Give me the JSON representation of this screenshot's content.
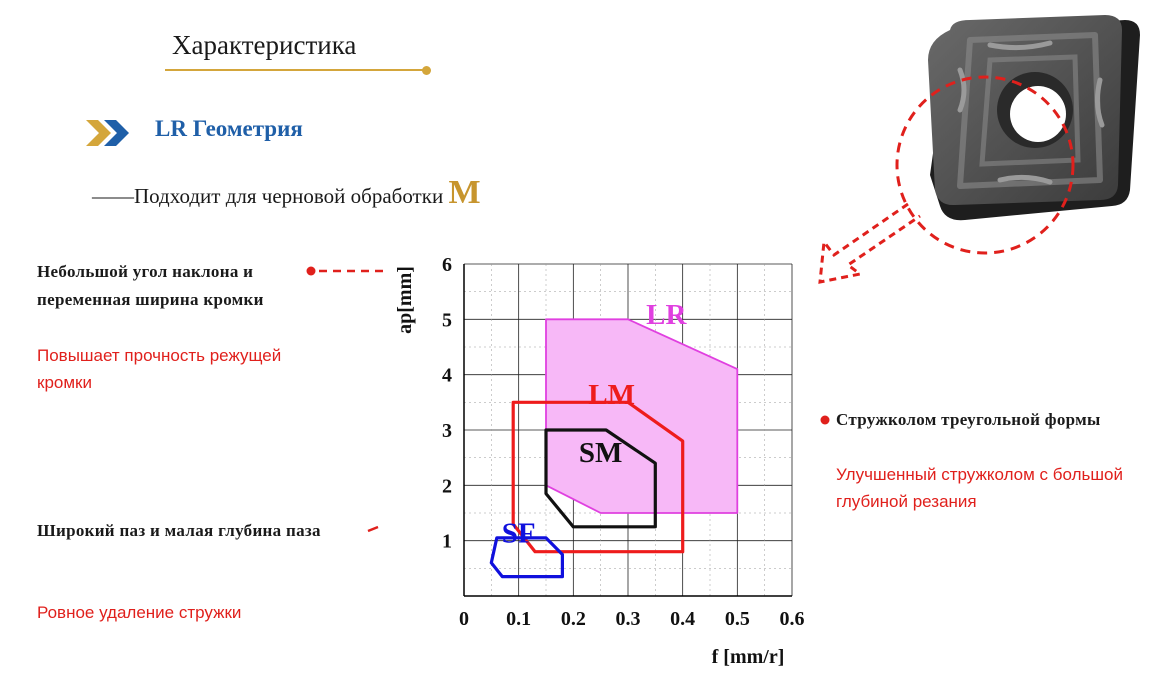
{
  "header": {
    "section_title": "Характеристика",
    "geometry_label": "LR Геометрия",
    "subtitle_text": "——Подходит для черновой обработки",
    "subtitle_highlight": "M"
  },
  "notes": [
    {
      "title": "Небольшой угол наклона и переменная ширина кромки",
      "desc": "Повышает прочность режущей кромки"
    },
    {
      "title": "Широкий паз и малая глубина паза",
      "desc": "Ровное удаление стружки"
    },
    {
      "title": "Стружколом треугольной формы",
      "desc": "Улучшенный стружколом с большой глубиной резания"
    }
  ],
  "colors": {
    "accent_gold": "#d4a63b",
    "geometry_blue": "#1f5fa8",
    "note_red": "#e0201c",
    "LR": "#e040e0",
    "LM": "#ee1c1c",
    "SM": "#111111",
    "SF": "#1010dd"
  },
  "chart_data": {
    "type": "area",
    "xlabel": "f [mm/r]",
    "ylabel": "ap[mm]",
    "xlim": [
      0,
      0.6
    ],
    "ylim": [
      0,
      6
    ],
    "xticks": [
      "0",
      "0.1",
      "0.2",
      "0.3",
      "0.4",
      "0.5",
      "0.6"
    ],
    "yticks": [
      "1",
      "2",
      "3",
      "4",
      "5",
      "6"
    ],
    "grid": true,
    "series": [
      {
        "name": "LR",
        "filled": true,
        "points": [
          [
            0.15,
            5.0
          ],
          [
            0.3,
            5.0
          ],
          [
            0.5,
            4.1
          ],
          [
            0.5,
            1.5
          ],
          [
            0.25,
            1.5
          ],
          [
            0.15,
            2.0
          ]
        ]
      },
      {
        "name": "LM",
        "filled": false,
        "points": [
          [
            0.09,
            3.5
          ],
          [
            0.3,
            3.5
          ],
          [
            0.4,
            2.8
          ],
          [
            0.4,
            0.8
          ],
          [
            0.13,
            0.8
          ],
          [
            0.09,
            1.3
          ]
        ]
      },
      {
        "name": "SM",
        "filled": false,
        "points": [
          [
            0.15,
            3.0
          ],
          [
            0.26,
            3.0
          ],
          [
            0.35,
            2.4
          ],
          [
            0.35,
            1.25
          ],
          [
            0.2,
            1.25
          ],
          [
            0.15,
            1.85
          ]
        ]
      },
      {
        "name": "SF",
        "filled": false,
        "points": [
          [
            0.06,
            1.05
          ],
          [
            0.15,
            1.05
          ],
          [
            0.18,
            0.75
          ],
          [
            0.18,
            0.35
          ],
          [
            0.07,
            0.35
          ],
          [
            0.05,
            0.6
          ]
        ]
      }
    ],
    "labels": [
      {
        "text": "LR",
        "x": 0.37,
        "y": 5.1
      },
      {
        "text": "LM",
        "x": 0.27,
        "y": 3.65
      },
      {
        "text": "SM",
        "x": 0.25,
        "y": 2.6
      },
      {
        "text": "SF",
        "x": 0.1,
        "y": 1.15
      }
    ]
  }
}
